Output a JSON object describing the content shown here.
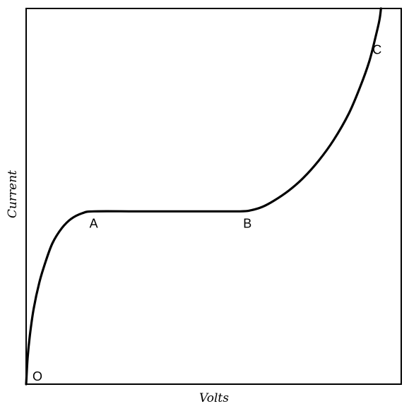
{
  "chart_data": {
    "type": "line",
    "title": "",
    "xlabel": "Volts",
    "ylabel": "Current",
    "xlim": [
      0,
      100
    ],
    "ylim": [
      0,
      100
    ],
    "grid": false,
    "line_color": "#000000",
    "series": [
      {
        "points": [
          [
            0,
            0
          ],
          [
            0.4,
            7
          ],
          [
            1,
            13
          ],
          [
            2,
            20
          ],
          [
            3.5,
            27
          ],
          [
            5,
            32
          ],
          [
            7,
            37.5
          ],
          [
            9.5,
            41.5
          ],
          [
            12,
            44
          ],
          [
            15,
            45.5
          ],
          [
            18,
            46
          ],
          [
            30,
            46
          ],
          [
            45,
            46
          ],
          [
            57,
            46
          ],
          [
            60,
            46.3
          ],
          [
            63,
            47.2
          ],
          [
            66,
            48.8
          ],
          [
            70,
            51.5
          ],
          [
            74,
            55
          ],
          [
            78,
            59.5
          ],
          [
            82,
            65
          ],
          [
            86,
            72
          ],
          [
            89,
            79
          ],
          [
            91.5,
            86
          ],
          [
            93.3,
            93
          ],
          [
            94.2,
            97
          ],
          [
            94.6,
            100
          ]
        ]
      }
    ],
    "annotations": [
      {
        "text": "O",
        "x": 0,
        "y": 0
      },
      {
        "text": "A",
        "x": 18,
        "y": 46
      },
      {
        "text": "B",
        "x": 59,
        "y": 46
      },
      {
        "text": "C",
        "x": 93,
        "y": 89
      }
    ]
  }
}
